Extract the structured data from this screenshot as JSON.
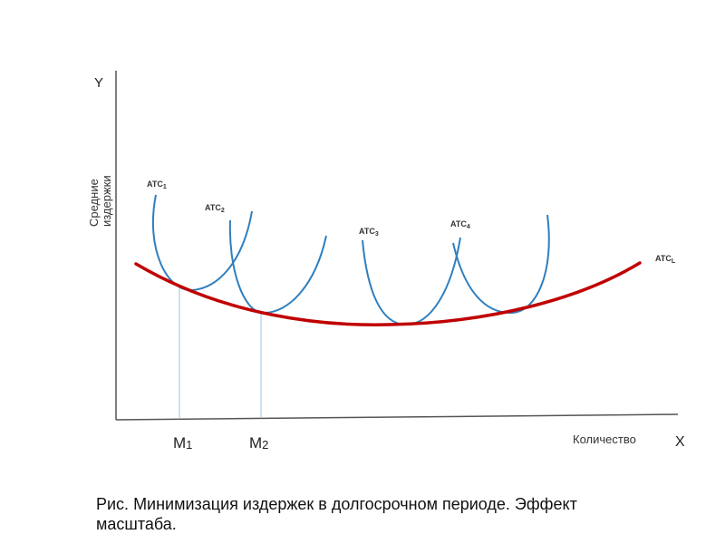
{
  "axes": {
    "y_label": "Y",
    "x_label": "X",
    "y_title": "Средние издержки",
    "x_title": "Количество"
  },
  "curves": {
    "atc1": {
      "base": "ATC",
      "sub": "1"
    },
    "atc2": {
      "base": "ATC",
      "sub": "2"
    },
    "atc3": {
      "base": "ATC",
      "sub": "3"
    },
    "atc4": {
      "base": "ATC",
      "sub": "4"
    },
    "atcl": {
      "base": "ATC",
      "sub": "L"
    }
  },
  "markers": {
    "m1": {
      "base": "M",
      "sub": "1"
    },
    "m2": {
      "base": "M",
      "sub": "2"
    }
  },
  "caption": "Рис. Минимизация издержек в долгосрочном периоде. Эффект масштаба.",
  "colors": {
    "short_run": "#2f7fbf",
    "long_run": "#c00000",
    "axis": "#555555",
    "guide": "#9ec3e6"
  }
}
